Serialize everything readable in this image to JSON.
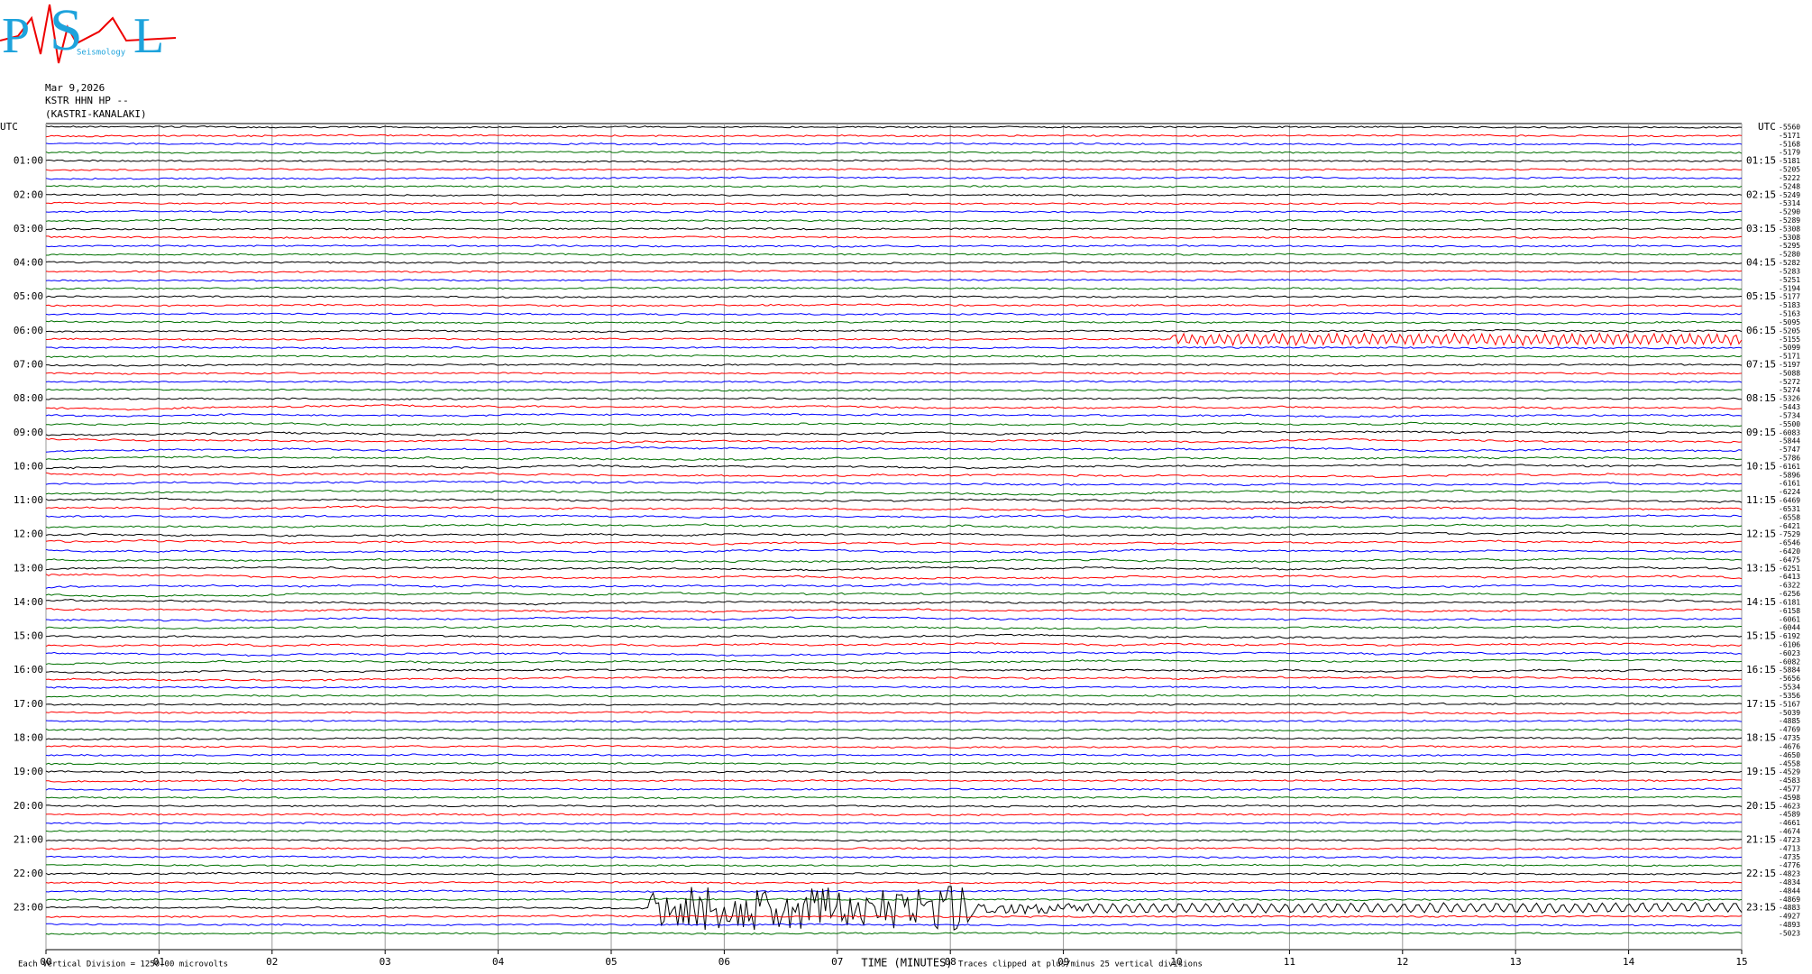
{
  "logo": {
    "letters": [
      "P",
      "S",
      "L"
    ],
    "words": "Seismology"
  },
  "header": {
    "date": "Mar 9,2026",
    "station": "KSTR HHN HP --",
    "location": "(KASTRI-KANALAKI)"
  },
  "chart_data": {
    "type": "helicorder",
    "left_labels": [
      "UTC",
      "01:00",
      "02:00",
      "03:00",
      "04:00",
      "05:00",
      "06:00",
      "07:00",
      "08:00",
      "09:00",
      "10:00",
      "11:00",
      "12:00",
      "13:00",
      "14:00",
      "15:00",
      "16:00",
      "17:00",
      "18:00",
      "19:00",
      "20:00",
      "21:00",
      "22:00",
      "23:00"
    ],
    "right_labels": [
      "UTC",
      "01:15",
      "02:15",
      "03:15",
      "04:15",
      "05:15",
      "06:15",
      "07:15",
      "08:15",
      "09:15",
      "10:15",
      "11:15",
      "12:15",
      "13:15",
      "14:15",
      "15:15",
      "16:15",
      "17:15",
      "18:15",
      "19:15",
      "20:15",
      "21:15",
      "22:15",
      "23:15"
    ],
    "trace_offsets": [
      "-5560",
      "-5171",
      "-5168",
      "-5179",
      "-5181",
      "-5205",
      "-5222",
      "-5248",
      "-5249",
      "-5314",
      "-5290",
      "-5289",
      "-5308",
      "-5308",
      "-5295",
      "-5280",
      "-5282",
      "-5283",
      "-5251",
      "-5194",
      "-5177",
      "-5183",
      "-5163",
      "-5095",
      "-5205",
      "-5155",
      "-5099",
      "-5171",
      "-5197",
      "-5088",
      "-5272",
      "-5274",
      "-5326",
      "-5443",
      "-5734",
      "-5500",
      "-6083",
      "-5844",
      "-5747",
      "-5786",
      "-6161",
      "-5896",
      "-6161",
      "-6224",
      "-6469",
      "-6531",
      "-6558",
      "-6421",
      "-7529",
      "-6546",
      "-6420",
      "-6475",
      "-6251",
      "-6413",
      "-6322",
      "-6256",
      "-6181",
      "-6158",
      "-6061",
      "-6044",
      "-6192",
      "-6106",
      "-6023",
      "-6082",
      "-5884",
      "-5656",
      "-5534",
      "-5356",
      "-5167",
      "-5039",
      "-4885",
      "-4769",
      "-4735",
      "-4676",
      "-4650",
      "-4558",
      "-4529",
      "-4583",
      "-4577",
      "-4598",
      "-4623",
      "-4589",
      "-4661",
      "-4674",
      "-4723",
      "-4713",
      "-4735",
      "-4776",
      "-4823",
      "-4834",
      "-4844",
      "-4869",
      "-4883",
      "-4927",
      "-4893",
      "-5023"
    ],
    "trace_colors": [
      "#000000",
      "#ff0000",
      "#0000ff",
      "#007000"
    ],
    "xlim": [
      0,
      15
    ],
    "xticks": [
      {
        "value": 0,
        "label": "00"
      },
      {
        "value": 1,
        "label": "01"
      },
      {
        "value": 2,
        "label": "02"
      },
      {
        "value": 3,
        "label": "03"
      },
      {
        "value": 4,
        "label": "04"
      },
      {
        "value": 5,
        "label": "05"
      },
      {
        "value": 6,
        "label": "06"
      },
      {
        "value": 7,
        "label": "07"
      },
      {
        "value": 8,
        "label": "08"
      },
      {
        "value": 9,
        "label": "09"
      },
      {
        "value": 10,
        "label": "10"
      },
      {
        "value": 11,
        "label": "11"
      },
      {
        "value": 12,
        "label": "12"
      },
      {
        "value": 13,
        "label": "13"
      },
      {
        "value": 14,
        "label": "14"
      },
      {
        "value": 15,
        "label": "15"
      }
    ],
    "xlabel": "TIME (MINUTES)",
    "scale_note": "Each Vertical Division = 1250.00 microvolts",
    "clip_note": "Traces clipped at plus/minus 25 vertical divisions",
    "grid": true
  }
}
